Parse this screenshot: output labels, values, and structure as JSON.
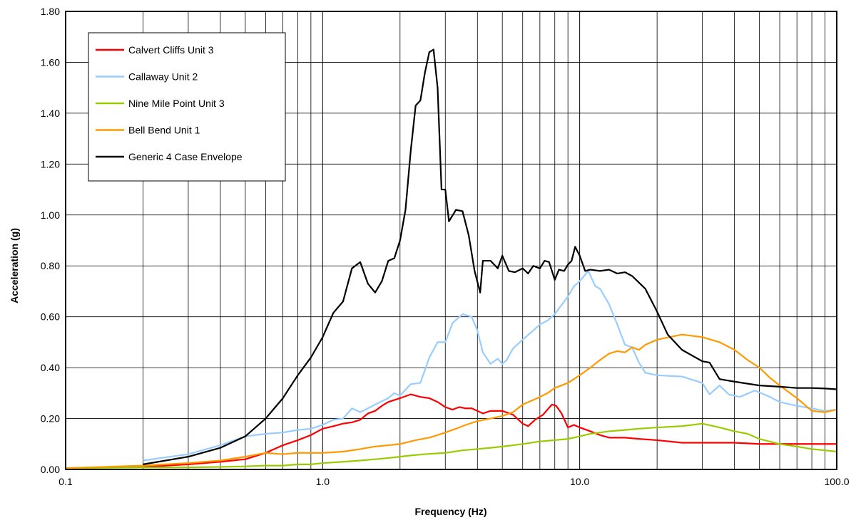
{
  "chart_data": {
    "type": "line",
    "title": "",
    "xlabel": "Frequency (Hz)",
    "ylabel": "Acceleration (g)",
    "x_scale": "log",
    "xlim": [
      0.1,
      100
    ],
    "ylim": [
      0,
      1.8
    ],
    "x_tick_labels": [
      "0.1",
      "1.0",
      "10.0",
      "100.0"
    ],
    "y_tick_labels": [
      "0.00",
      "0.20",
      "0.40",
      "0.60",
      "0.80",
      "1.00",
      "1.20",
      "1.40",
      "1.60",
      "1.80"
    ],
    "grid": true,
    "legend_position": "top-left",
    "series": [
      {
        "name": "Calvert Cliffs Unit 3",
        "color": "#ff0000",
        "points": [
          [
            0.1,
            0.005
          ],
          [
            0.2,
            0.01
          ],
          [
            0.3,
            0.02
          ],
          [
            0.4,
            0.03
          ],
          [
            0.5,
            0.04
          ],
          [
            0.6,
            0.065
          ],
          [
            0.7,
            0.095
          ],
          [
            0.8,
            0.115
          ],
          [
            0.9,
            0.135
          ],
          [
            1.0,
            0.16
          ],
          [
            1.1,
            0.17
          ],
          [
            1.2,
            0.18
          ],
          [
            1.3,
            0.185
          ],
          [
            1.4,
            0.195
          ],
          [
            1.5,
            0.22
          ],
          [
            1.6,
            0.23
          ],
          [
            1.7,
            0.25
          ],
          [
            1.8,
            0.265
          ],
          [
            2.0,
            0.28
          ],
          [
            2.2,
            0.295
          ],
          [
            2.4,
            0.285
          ],
          [
            2.6,
            0.28
          ],
          [
            2.8,
            0.265
          ],
          [
            3.0,
            0.245
          ],
          [
            3.2,
            0.235
          ],
          [
            3.4,
            0.245
          ],
          [
            3.6,
            0.24
          ],
          [
            3.8,
            0.24
          ],
          [
            4.0,
            0.23
          ],
          [
            4.2,
            0.22
          ],
          [
            4.5,
            0.23
          ],
          [
            5.0,
            0.23
          ],
          [
            5.5,
            0.215
          ],
          [
            6.0,
            0.18
          ],
          [
            6.3,
            0.17
          ],
          [
            6.7,
            0.195
          ],
          [
            7.2,
            0.215
          ],
          [
            7.8,
            0.255
          ],
          [
            8.1,
            0.25
          ],
          [
            8.5,
            0.22
          ],
          [
            9.0,
            0.165
          ],
          [
            9.5,
            0.175
          ],
          [
            10,
            0.165
          ],
          [
            11,
            0.15
          ],
          [
            12,
            0.135
          ],
          [
            13,
            0.125
          ],
          [
            15,
            0.125
          ],
          [
            17,
            0.12
          ],
          [
            20,
            0.115
          ],
          [
            25,
            0.105
          ],
          [
            30,
            0.105
          ],
          [
            40,
            0.105
          ],
          [
            50,
            0.1
          ],
          [
            60,
            0.1
          ],
          [
            70,
            0.1
          ],
          [
            80,
            0.1
          ],
          [
            90,
            0.1
          ],
          [
            100,
            0.1
          ]
        ]
      },
      {
        "name": "Callaway Unit 2",
        "color": "#99ccff",
        "points": [
          [
            0.2,
            0.035
          ],
          [
            0.3,
            0.06
          ],
          [
            0.4,
            0.095
          ],
          [
            0.5,
            0.13
          ],
          [
            0.6,
            0.14
          ],
          [
            0.7,
            0.145
          ],
          [
            0.8,
            0.155
          ],
          [
            0.9,
            0.16
          ],
          [
            1.0,
            0.175
          ],
          [
            1.1,
            0.195
          ],
          [
            1.2,
            0.2
          ],
          [
            1.3,
            0.24
          ],
          [
            1.4,
            0.225
          ],
          [
            1.5,
            0.24
          ],
          [
            1.6,
            0.255
          ],
          [
            1.8,
            0.28
          ],
          [
            1.9,
            0.3
          ],
          [
            2.0,
            0.29
          ],
          [
            2.2,
            0.335
          ],
          [
            2.4,
            0.34
          ],
          [
            2.6,
            0.44
          ],
          [
            2.8,
            0.5
          ],
          [
            3.0,
            0.5
          ],
          [
            3.2,
            0.575
          ],
          [
            3.5,
            0.61
          ],
          [
            3.8,
            0.6
          ],
          [
            4.0,
            0.545
          ],
          [
            4.2,
            0.46
          ],
          [
            4.5,
            0.415
          ],
          [
            4.8,
            0.435
          ],
          [
            5.0,
            0.415
          ],
          [
            5.2,
            0.43
          ],
          [
            5.5,
            0.475
          ],
          [
            6.0,
            0.51
          ],
          [
            6.5,
            0.54
          ],
          [
            7.0,
            0.57
          ],
          [
            7.5,
            0.585
          ],
          [
            8.0,
            0.61
          ],
          [
            9.0,
            0.68
          ],
          [
            9.5,
            0.72
          ],
          [
            10,
            0.74
          ],
          [
            10.8,
            0.78
          ],
          [
            11.5,
            0.72
          ],
          [
            12,
            0.71
          ],
          [
            13,
            0.65
          ],
          [
            14,
            0.57
          ],
          [
            15,
            0.49
          ],
          [
            16,
            0.48
          ],
          [
            17,
            0.42
          ],
          [
            18,
            0.38
          ],
          [
            20,
            0.37
          ],
          [
            25,
            0.365
          ],
          [
            30,
            0.34
          ],
          [
            32,
            0.295
          ],
          [
            35,
            0.33
          ],
          [
            38,
            0.295
          ],
          [
            42,
            0.285
          ],
          [
            48,
            0.31
          ],
          [
            55,
            0.285
          ],
          [
            60,
            0.265
          ],
          [
            70,
            0.25
          ],
          [
            80,
            0.24
          ],
          [
            90,
            0.23
          ],
          [
            100,
            0.235
          ]
        ]
      },
      {
        "name": "Nine Mile Point Unit 3",
        "color": "#99cc00",
        "points": [
          [
            0.1,
            0.005
          ],
          [
            0.2,
            0.008
          ],
          [
            0.3,
            0.008
          ],
          [
            0.4,
            0.01
          ],
          [
            0.5,
            0.012
          ],
          [
            0.6,
            0.015
          ],
          [
            0.7,
            0.015
          ],
          [
            0.8,
            0.02
          ],
          [
            0.9,
            0.02
          ],
          [
            1.0,
            0.025
          ],
          [
            1.2,
            0.03
          ],
          [
            1.4,
            0.035
          ],
          [
            1.6,
            0.04
          ],
          [
            1.8,
            0.045
          ],
          [
            2.0,
            0.05
          ],
          [
            2.2,
            0.055
          ],
          [
            2.5,
            0.06
          ],
          [
            3.0,
            0.065
          ],
          [
            3.5,
            0.075
          ],
          [
            4.0,
            0.08
          ],
          [
            4.5,
            0.085
          ],
          [
            5.0,
            0.09
          ],
          [
            5.5,
            0.095
          ],
          [
            6.0,
            0.1
          ],
          [
            7.0,
            0.11
          ],
          [
            8.0,
            0.115
          ],
          [
            9.0,
            0.12
          ],
          [
            10,
            0.13
          ],
          [
            11,
            0.14
          ],
          [
            12,
            0.145
          ],
          [
            13,
            0.15
          ],
          [
            15,
            0.155
          ],
          [
            17,
            0.16
          ],
          [
            20,
            0.165
          ],
          [
            25,
            0.17
          ],
          [
            30,
            0.18
          ],
          [
            35,
            0.165
          ],
          [
            40,
            0.15
          ],
          [
            45,
            0.14
          ],
          [
            50,
            0.12
          ],
          [
            60,
            0.1
          ],
          [
            70,
            0.09
          ],
          [
            80,
            0.08
          ],
          [
            90,
            0.075
          ],
          [
            100,
            0.07
          ]
        ]
      },
      {
        "name": "Bell Bend Unit 1",
        "color": "#ff9900",
        "points": [
          [
            0.1,
            0.005
          ],
          [
            0.2,
            0.015
          ],
          [
            0.3,
            0.025
          ],
          [
            0.4,
            0.035
          ],
          [
            0.5,
            0.05
          ],
          [
            0.6,
            0.065
          ],
          [
            0.7,
            0.06
          ],
          [
            0.8,
            0.065
          ],
          [
            0.9,
            0.065
          ],
          [
            1.0,
            0.065
          ],
          [
            1.2,
            0.07
          ],
          [
            1.4,
            0.08
          ],
          [
            1.6,
            0.09
          ],
          [
            1.8,
            0.095
          ],
          [
            2.0,
            0.1
          ],
          [
            2.3,
            0.115
          ],
          [
            2.6,
            0.125
          ],
          [
            2.8,
            0.135
          ],
          [
            3.0,
            0.145
          ],
          [
            3.3,
            0.16
          ],
          [
            3.6,
            0.175
          ],
          [
            4.0,
            0.19
          ],
          [
            4.5,
            0.2
          ],
          [
            5.0,
            0.21
          ],
          [
            5.5,
            0.225
          ],
          [
            6.0,
            0.255
          ],
          [
            6.5,
            0.27
          ],
          [
            7.0,
            0.285
          ],
          [
            7.5,
            0.3
          ],
          [
            8.0,
            0.32
          ],
          [
            9.0,
            0.34
          ],
          [
            10,
            0.37
          ],
          [
            11,
            0.4
          ],
          [
            12,
            0.43
          ],
          [
            13,
            0.455
          ],
          [
            14,
            0.465
          ],
          [
            15,
            0.46
          ],
          [
            16,
            0.48
          ],
          [
            17,
            0.47
          ],
          [
            18,
            0.49
          ],
          [
            20,
            0.51
          ],
          [
            25,
            0.53
          ],
          [
            30,
            0.52
          ],
          [
            35,
            0.5
          ],
          [
            40,
            0.47
          ],
          [
            45,
            0.43
          ],
          [
            50,
            0.4
          ],
          [
            55,
            0.36
          ],
          [
            60,
            0.33
          ],
          [
            70,
            0.28
          ],
          [
            80,
            0.23
          ],
          [
            90,
            0.225
          ],
          [
            100,
            0.235
          ]
        ]
      },
      {
        "name": "Generic 4 Case Envelope",
        "color": "#000000",
        "points": [
          [
            0.2,
            0.02
          ],
          [
            0.3,
            0.05
          ],
          [
            0.4,
            0.085
          ],
          [
            0.5,
            0.13
          ],
          [
            0.6,
            0.2
          ],
          [
            0.7,
            0.28
          ],
          [
            0.8,
            0.37
          ],
          [
            0.9,
            0.44
          ],
          [
            1.0,
            0.52
          ],
          [
            1.1,
            0.615
          ],
          [
            1.2,
            0.66
          ],
          [
            1.3,
            0.79
          ],
          [
            1.4,
            0.815
          ],
          [
            1.5,
            0.73
          ],
          [
            1.6,
            0.695
          ],
          [
            1.7,
            0.74
          ],
          [
            1.8,
            0.82
          ],
          [
            1.9,
            0.83
          ],
          [
            2.0,
            0.9
          ],
          [
            2.1,
            1.02
          ],
          [
            2.2,
            1.25
          ],
          [
            2.3,
            1.43
          ],
          [
            2.4,
            1.45
          ],
          [
            2.5,
            1.56
          ],
          [
            2.6,
            1.64
          ],
          [
            2.7,
            1.65
          ],
          [
            2.8,
            1.5
          ],
          [
            2.9,
            1.1
          ],
          [
            3.0,
            1.1
          ],
          [
            3.1,
            0.975
          ],
          [
            3.3,
            1.02
          ],
          [
            3.5,
            1.015
          ],
          [
            3.7,
            0.92
          ],
          [
            3.9,
            0.78
          ],
          [
            4.1,
            0.695
          ],
          [
            4.2,
            0.82
          ],
          [
            4.5,
            0.82
          ],
          [
            4.8,
            0.79
          ],
          [
            5.0,
            0.84
          ],
          [
            5.3,
            0.78
          ],
          [
            5.6,
            0.775
          ],
          [
            6.0,
            0.79
          ],
          [
            6.3,
            0.77
          ],
          [
            6.6,
            0.8
          ],
          [
            7.0,
            0.79
          ],
          [
            7.3,
            0.82
          ],
          [
            7.6,
            0.815
          ],
          [
            8.0,
            0.745
          ],
          [
            8.3,
            0.785
          ],
          [
            8.7,
            0.78
          ],
          [
            9.0,
            0.805
          ],
          [
            9.3,
            0.82
          ],
          [
            9.6,
            0.875
          ],
          [
            10,
            0.84
          ],
          [
            10.5,
            0.78
          ],
          [
            11,
            0.785
          ],
          [
            12,
            0.78
          ],
          [
            13,
            0.785
          ],
          [
            14,
            0.77
          ],
          [
            15,
            0.775
          ],
          [
            16,
            0.76
          ],
          [
            18,
            0.71
          ],
          [
            20,
            0.62
          ],
          [
            22,
            0.53
          ],
          [
            25,
            0.47
          ],
          [
            30,
            0.425
          ],
          [
            32,
            0.42
          ],
          [
            35,
            0.355
          ],
          [
            40,
            0.345
          ],
          [
            50,
            0.33
          ],
          [
            60,
            0.325
          ],
          [
            70,
            0.32
          ],
          [
            80,
            0.32
          ],
          [
            90,
            0.318
          ],
          [
            100,
            0.315
          ]
        ]
      }
    ]
  }
}
